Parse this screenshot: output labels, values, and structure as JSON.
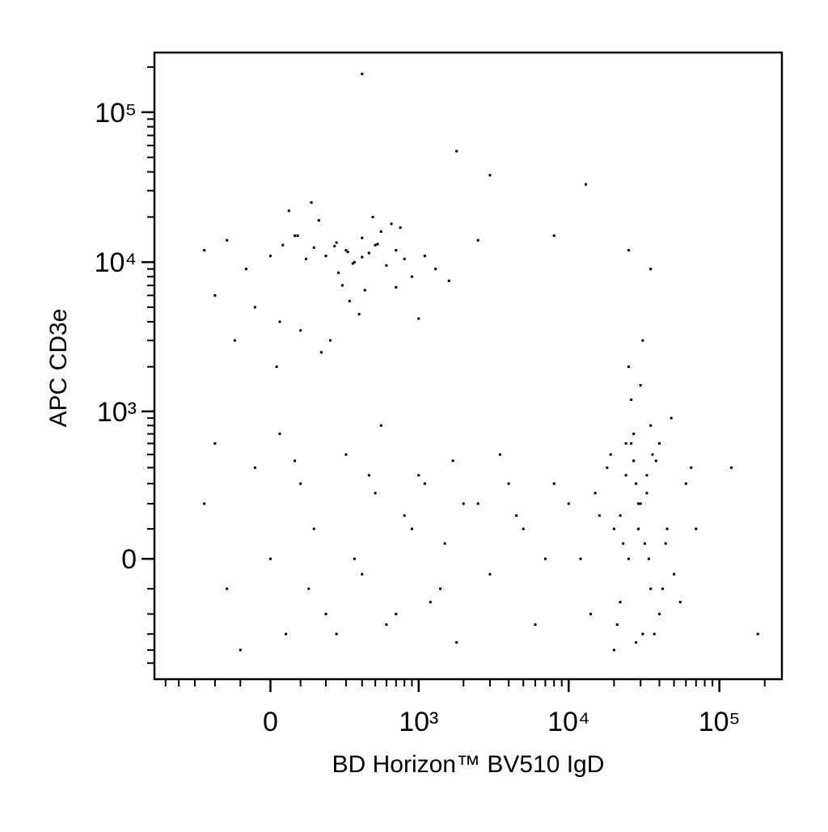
{
  "chart_data": {
    "type": "scatter",
    "scale": "biex",
    "color": "#000000",
    "x_label": "BD Horizon™ BV510 IgD",
    "y_label": "APC CD3e",
    "xlim": [
      -600,
      260000
    ],
    "ylim": [
      -650,
      250000
    ],
    "xticks": [
      0,
      {
        "value": 1000,
        "label": "10³"
      },
      {
        "value": 10000,
        "label": "10⁴"
      },
      {
        "value": 100000,
        "label": "10⁵"
      }
    ],
    "yticks": [
      0,
      {
        "value": 1000,
        "label": "10³"
      },
      {
        "value": 10000,
        "label": "10⁴"
      },
      {
        "value": 100000,
        "label": "10⁵"
      }
    ],
    "xminorticks": [
      -500,
      -400,
      -300,
      -200,
      -100,
      100,
      200,
      300,
      400,
      500,
      600,
      700,
      800,
      900,
      2000,
      3000,
      4000,
      5000,
      6000,
      7000,
      8000,
      9000,
      20000,
      30000,
      40000,
      50000,
      60000,
      70000,
      80000,
      90000,
      200000
    ],
    "yminorticks": [
      -500,
      -400,
      -300,
      -200,
      -100,
      100,
      200,
      300,
      400,
      500,
      600,
      700,
      800,
      900,
      2000,
      3000,
      4000,
      5000,
      6000,
      7000,
      8000,
      9000,
      20000,
      30000,
      40000,
      50000,
      60000,
      70000,
      80000,
      90000,
      200000
    ],
    "x": [
      -250,
      -150,
      -80,
      0,
      40,
      80,
      120,
      150,
      200,
      250,
      300,
      350,
      400,
      450,
      500,
      600,
      700,
      800,
      900,
      1100,
      1300,
      1600,
      -200,
      -50,
      30,
      100,
      180,
      220,
      280,
      320,
      380,
      420,
      480,
      550,
      650,
      750,
      60,
      140,
      260,
      340,
      -120,
      20,
      90,
      170,
      240,
      310,
      400,
      520,
      700,
      1000,
      20000,
      25000,
      30000,
      35000,
      28000,
      22000,
      32000,
      40000,
      18000,
      15000,
      45000,
      50000,
      26000,
      31000,
      24000,
      38000,
      12000,
      10000,
      55000,
      60000,
      29000,
      33000,
      21000,
      27000,
      36000,
      42000,
      16000,
      48000,
      23000,
      34000,
      30000,
      25000,
      28000,
      35000,
      20000,
      40000,
      8000,
      14000,
      65000,
      70000,
      26000,
      31000,
      19000,
      37000,
      44000,
      22000,
      29000,
      33000,
      27000,
      24000,
      -250,
      -150,
      -50,
      0,
      50,
      100,
      150,
      200,
      300,
      400,
      500,
      600,
      800,
      1000,
      1200,
      1500,
      1800,
      2000,
      -200,
      -100,
      30,
      80,
      130,
      250,
      350,
      450,
      550,
      700,
      900,
      1100,
      1400,
      1700,
      2500,
      3000,
      4000,
      5000,
      6000,
      7000,
      3500,
      4500,
      400,
      1800,
      3000,
      8000,
      13000,
      25000,
      35000,
      120000,
      180000,
      2500
    ],
    "values": [
      12000,
      14000,
      9000,
      11000,
      13000,
      15000,
      10500,
      12500,
      11000,
      13500,
      12000,
      10000,
      14500,
      11500,
      13000,
      9500,
      12000,
      10500,
      8000,
      11000,
      9000,
      7500,
      6000,
      5000,
      4000,
      3500,
      2500,
      3000,
      7000,
      5500,
      4500,
      6500,
      20000,
      16000,
      18000,
      17000,
      22000,
      25000,
      8500,
      9800,
      3000,
      2000,
      15000,
      19000,
      12800,
      11700,
      10800,
      13200,
      6800,
      4200,
      100,
      0,
      200,
      -100,
      300,
      150,
      50,
      -200,
      400,
      250,
      100,
      -50,
      600,
      -300,
      350,
      450,
      0,
      200,
      -150,
      300,
      100,
      250,
      -250,
      700,
      500,
      -100,
      150,
      900,
      50,
      0,
      1500,
      2000,
      -350,
      800,
      -400,
      600,
      300,
      -200,
      400,
      100,
      1200,
      3000,
      500,
      -300,
      50,
      -150,
      200,
      350,
      450,
      600,
      200,
      -100,
      400,
      0,
      -300,
      300,
      100,
      -200,
      500,
      -50,
      250,
      -250,
      150,
      350,
      -150,
      50,
      -350,
      200,
      600,
      -400,
      700,
      450,
      -100,
      -300,
      0,
      350,
      800,
      -200,
      100,
      300,
      -100,
      450,
      200,
      -50,
      300,
      100,
      -250,
      0,
      500,
      150,
      180000,
      55000,
      38000,
      15000,
      33000,
      12000,
      9000,
      400,
      -300,
      14000
    ]
  }
}
